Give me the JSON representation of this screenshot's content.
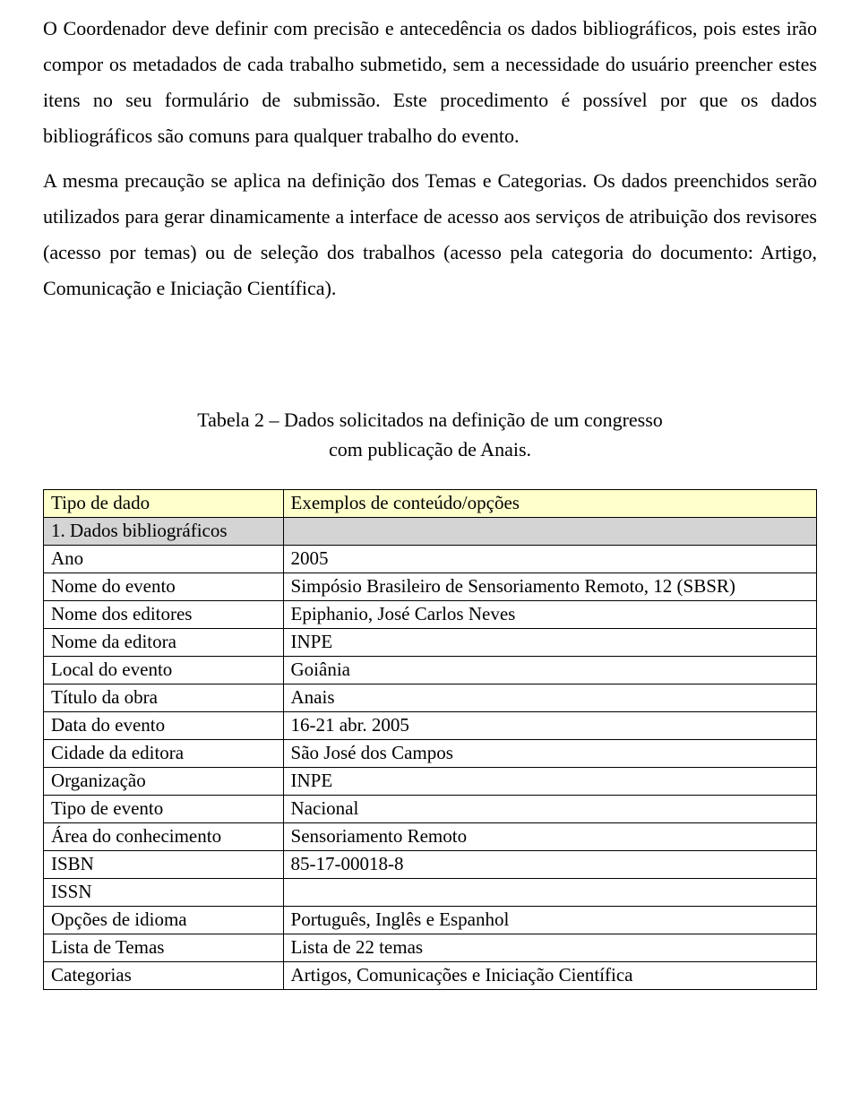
{
  "paragraphs": [
    "O Coordenador deve definir com precisão e antecedência os dados bibliográficos, pois estes irão compor os metadados de cada trabalho submetido, sem a necessidade do usuário preencher estes itens no seu formulário de submissão. Este procedimento é possível por que os dados bibliográficos são comuns para qualquer trabalho do evento.",
    "A mesma precaução se aplica na definição dos Temas e Categorias. Os dados preenchidos serão utilizados para gerar dinamicamente a interface de acesso aos serviços de atribuição dos revisores (acesso por temas) ou de seleção dos trabalhos (acesso pela categoria do documento: Artigo, Comunicação e Iniciação Científica)."
  ],
  "caption_line1": "Tabela 2 – Dados solicitados na definição de um congresso",
  "caption_line2": "com publicação de Anais.",
  "table": {
    "header": {
      "col1": "Tipo de dado",
      "col2": "Exemplos de conteúdo/opções"
    },
    "section_label": "1. Dados bibliográficos",
    "header_bg": "#ffffcc",
    "section_bg": "#d4d4d4",
    "border_color": "#000000",
    "rows": [
      {
        "c1": "Ano",
        "c2": "2005"
      },
      {
        "c1": "Nome do evento",
        "c2": "Simpósio Brasileiro de Sensoriamento Remoto, 12 (SBSR)"
      },
      {
        "c1": "Nome dos editores",
        "c2": "Epiphanio, José Carlos Neves"
      },
      {
        "c1": "Nome da editora",
        "c2": "INPE"
      },
      {
        "c1": "Local do evento",
        "c2": "Goiânia"
      },
      {
        "c1": "Título da obra",
        "c2": "Anais"
      },
      {
        "c1": "Data do evento",
        "c2": "16-21 abr. 2005"
      },
      {
        "c1": "Cidade da editora",
        "c2": "São José dos Campos"
      },
      {
        "c1": "Organização",
        "c2": "INPE"
      },
      {
        "c1": "Tipo de evento",
        "c2": "Nacional"
      },
      {
        "c1": "Área do conhecimento",
        "c2": "Sensoriamento Remoto"
      },
      {
        "c1": "ISBN",
        "c2": "85-17-00018-8"
      },
      {
        "c1": "ISSN",
        "c2": ""
      },
      {
        "c1": "Opções de idioma",
        "c2": "Português, Inglês e Espanhol"
      },
      {
        "c1": "Lista de Temas",
        "c2": "Lista de 22 temas"
      },
      {
        "c1": "Categorias",
        "c2": "Artigos, Comunicações e Iniciação Científica"
      }
    ]
  }
}
